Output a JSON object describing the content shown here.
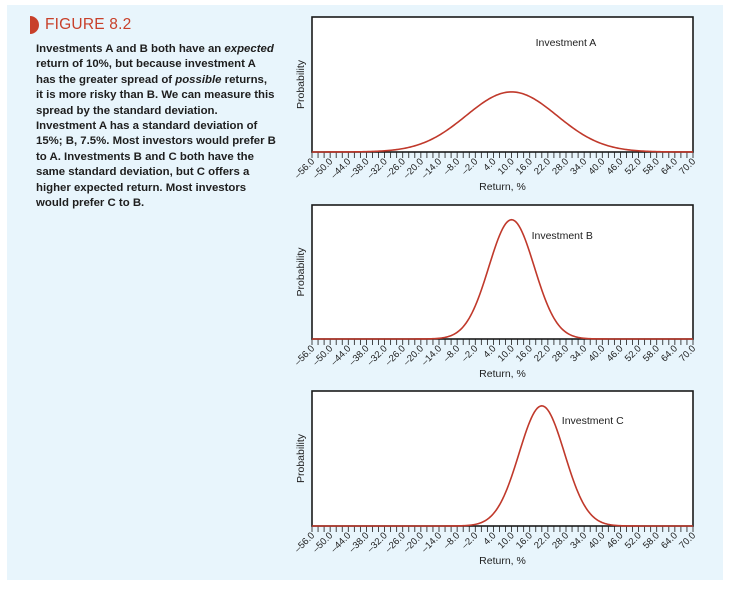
{
  "figure": {
    "title": "FIGURE 8.2",
    "accent_color": "#c8402a",
    "caption_parts": [
      {
        "text": "Investments A and B both have an ",
        "italic": false
      },
      {
        "text": "expected",
        "italic": true
      },
      {
        "text": " return of 10%, but because investment A has the greater spread of ",
        "italic": false
      },
      {
        "text": "possible",
        "italic": true
      },
      {
        "text": " returns, it is more risky than B. We can measure this spread by the standard deviation. Investment A has a standard deviation of 15%; B, 7.5%. Most investors would prefer B to A. Investments B and C both have the same standard deviation, but C offers a higher expected return. Most investors would prefer C to B.",
        "italic": false
      }
    ]
  },
  "chart_data": [
    {
      "type": "line",
      "title": "",
      "series_label": "Investment A",
      "distribution": "normal",
      "mean": 10,
      "std_dev": 15,
      "xlabel": "Return, %",
      "ylabel": "Probability",
      "xlim": [
        -56,
        70
      ],
      "x_tick_labels": [
        "–56.0",
        "–50.0",
        "–44.0",
        "–38.0",
        "–32.0",
        "–26.0",
        "–20.0",
        "–14.0",
        "–8.0",
        "–2.0",
        "4.0",
        "10.0",
        "16.0",
        "22.0",
        "28.0",
        "34.0",
        "40.0",
        "46.0",
        "52.0",
        "58.0",
        "64.0",
        "70.0"
      ],
      "minor_tick_step": 2,
      "line_color": "#c0392b",
      "grid": false
    },
    {
      "type": "line",
      "title": "",
      "series_label": "Investment B",
      "distribution": "normal",
      "mean": 10,
      "std_dev": 7.5,
      "xlabel": "Return, %",
      "ylabel": "Probability",
      "xlim": [
        -56,
        70
      ],
      "x_tick_labels": [
        "–56.0",
        "–50.0",
        "–44.0",
        "–38.0",
        "–32.0",
        "–26.0",
        "–20.0",
        "–14.0",
        "–8.0",
        "–2.0",
        "4.0",
        "10.0",
        "16.0",
        "22.0",
        "28.0",
        "34.0",
        "40.0",
        "46.0",
        "52.0",
        "58.0",
        "64.0",
        "70.0"
      ],
      "minor_tick_step": 2,
      "line_color": "#c0392b",
      "grid": false
    },
    {
      "type": "line",
      "title": "",
      "series_label": "Investment C",
      "distribution": "normal",
      "mean": 20,
      "std_dev": 7.5,
      "xlabel": "Return, %",
      "ylabel": "Probability",
      "xlim": [
        -56,
        70
      ],
      "x_tick_labels": [
        "–56.0",
        "–50.0",
        "–44.0",
        "–38.0",
        "–32.0",
        "–26.0",
        "–20.0",
        "–14.0",
        "–8.0",
        "–2.0",
        "4.0",
        "10.0",
        "16.0",
        "22.0",
        "28.0",
        "34.0",
        "40.0",
        "46.0",
        "52.0",
        "58.0",
        "64.0",
        "70.0"
      ],
      "minor_tick_step": 2,
      "line_color": "#c0392b",
      "grid": false
    }
  ]
}
